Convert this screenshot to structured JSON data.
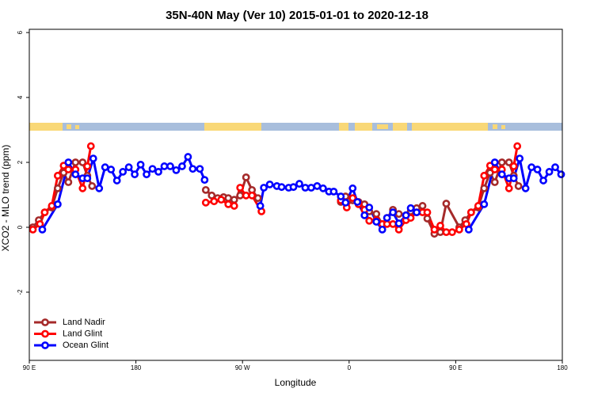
{
  "chart_data": {
    "type": "line",
    "title": "35N-40N May (Ver 10)   2015-01-01 to 2020-12-18",
    "x_label": "Longitude",
    "y_label": "XCO2 - MLO trend (ppm)",
    "xlim": [
      90,
      540
    ],
    "xticks": [
      {
        "value": 90,
        "label": "90 E"
      },
      180,
      {
        "value": 270,
        "label": "90 W"
      },
      {
        "value": 360,
        "label": "0"
      },
      {
        "value": 450,
        "label": "90 E"
      },
      {
        "value": 540,
        "label": "180"
      }
    ],
    "ylim": [
      -4.1,
      6.1
    ],
    "yticks": [
      -2,
      0,
      2,
      4,
      6
    ],
    "legend": "bottom-left",
    "series": [
      {
        "name": "Land Nadir",
        "color": "#a52a2a",
        "x": [
          93,
          98,
          103,
          109,
          114,
          119,
          123,
          129,
          135,
          139,
          143,
          null,
          239,
          244,
          249,
          254,
          258,
          263,
          268,
          273,
          278,
          283,
          null,
          353,
          357,
          363,
          368,
          373,
          377,
          383,
          388,
          392,
          397,
          402,
          408,
          412,
          417,
          422,
          426,
          432,
          437,
          442,
          453,
          458,
          463,
          469,
          474,
          479,
          483,
          489,
          495,
          499,
          503
        ],
        "values": [
          0,
          0.22,
          0.46,
          0.61,
          1.2,
          1.68,
          1.39,
          2.0,
          2.0,
          1.59,
          1.27,
          null,
          1.15,
          0.98,
          0.9,
          0.93,
          0.9,
          0.85,
          0.98,
          1.54,
          1.15,
          0.9,
          null,
          0.78,
          0.95,
          0.83,
          0.78,
          0.71,
          0.49,
          0.41,
          0.1,
          0.29,
          0.54,
          0.41,
          0.37,
          0.49,
          0.59,
          0.66,
          0.27,
          -0.2,
          -0.15,
          0.73,
          0,
          0.22,
          0.46,
          0.61,
          1.2,
          1.68,
          1.39,
          2.0,
          2.0,
          1.59,
          1.27
        ]
      },
      {
        "name": "Land Glint",
        "color": "#ff0000",
        "x": [
          93,
          99,
          103,
          109,
          114,
          119,
          123,
          129,
          135,
          139,
          142,
          null,
          239,
          246,
          252,
          258,
          263,
          268,
          273,
          278,
          286,
          null,
          353,
          358,
          363,
          368,
          373,
          377,
          383,
          388,
          392,
          397,
          402,
          408,
          412,
          417,
          422,
          426,
          432,
          437,
          442,
          447,
          453,
          459,
          463,
          469,
          474,
          479,
          483,
          489,
          495,
          499,
          502
        ],
        "values": [
          -0.07,
          0.1,
          0.46,
          0.66,
          1.59,
          1.9,
          1.78,
          1.78,
          1.2,
          1.88,
          2.5,
          null,
          0.76,
          0.8,
          0.85,
          0.71,
          0.66,
          1.22,
          0.98,
          0.98,
          0.49,
          null,
          0.83,
          0.61,
          0.9,
          0.71,
          0.54,
          0.2,
          0.22,
          0.1,
          0.1,
          0.1,
          -0.07,
          0.22,
          0.29,
          0.46,
          0.46,
          0.46,
          -0.07,
          0.05,
          -0.15,
          -0.15,
          -0.07,
          0.1,
          0.46,
          0.66,
          1.59,
          1.9,
          1.78,
          1.78,
          1.2,
          1.88,
          2.5
        ]
      },
      {
        "name": "Ocean Glint",
        "color": "#0000ff",
        "x": [
          101,
          114,
          123,
          129,
          135,
          139,
          144,
          149,
          154,
          159,
          164,
          169,
          174,
          179,
          184,
          189,
          194,
          199,
          204,
          209,
          214,
          219,
          224,
          228,
          234,
          238,
          null,
          285,
          288,
          293,
          299,
          303,
          309,
          313,
          318,
          323,
          328,
          333,
          338,
          343,
          347,
          353,
          357,
          363,
          367,
          373,
          377,
          383,
          388,
          392,
          397,
          402,
          408,
          412,
          417,
          null,
          461,
          474,
          483,
          489,
          495,
          499,
          504,
          509,
          514,
          519,
          524,
          529,
          534,
          539
        ],
        "values": [
          -0.07,
          0.71,
          2.0,
          1.63,
          1.51,
          1.51,
          2.12,
          1.2,
          1.85,
          1.78,
          1.44,
          1.71,
          1.85,
          1.63,
          1.93,
          1.63,
          1.8,
          1.71,
          1.88,
          1.88,
          1.76,
          1.88,
          2.17,
          1.8,
          1.8,
          1.46,
          null,
          0.66,
          1.22,
          1.32,
          1.27,
          1.24,
          1.22,
          1.24,
          1.34,
          1.22,
          1.22,
          1.27,
          1.2,
          1.1,
          1.1,
          0.95,
          0.76,
          1.2,
          0.78,
          0.37,
          0.61,
          0.17,
          -0.07,
          0.29,
          0.46,
          0.12,
          0.37,
          0.59,
          0.46,
          null,
          -0.07,
          0.71,
          2.0,
          1.63,
          1.51,
          1.51,
          2.12,
          1.2,
          1.85,
          1.78,
          1.44,
          1.71,
          1.85,
          1.63
        ]
      }
    ]
  }
}
